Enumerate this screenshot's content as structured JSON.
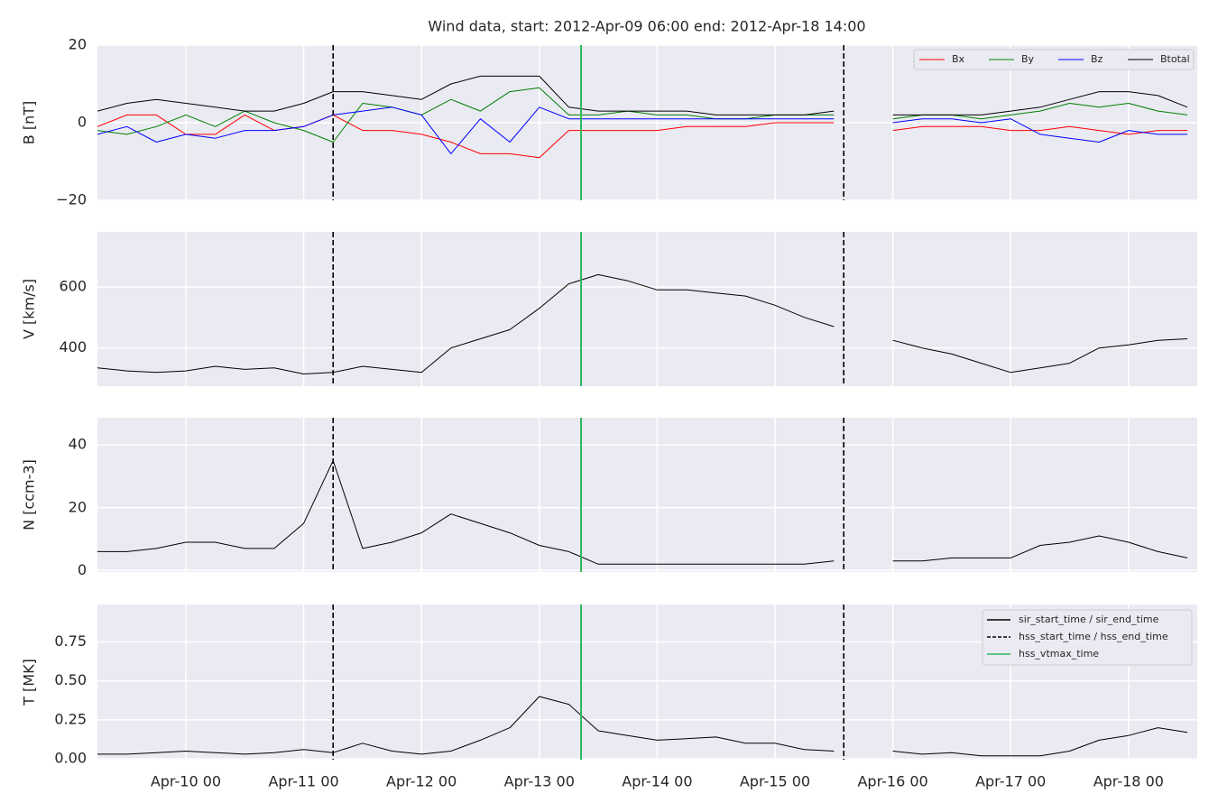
{
  "chart_data": {
    "type": "line",
    "title": "Wind data, start: 2012-Apr-09 06:00  end: 2012-Apr-18 14:00",
    "xlim": [
      "2012-04-09 06:00",
      "2012-04-18 14:00"
    ],
    "xticks": [
      {
        "value": "2012-04-10 00:00",
        "label": "Apr-10 00"
      },
      {
        "value": "2012-04-11 00:00",
        "label": "Apr-11 00"
      },
      {
        "value": "2012-04-12 00:00",
        "label": "Apr-12 00"
      },
      {
        "value": "2012-04-13 00:00",
        "label": "Apr-13 00"
      },
      {
        "value": "2012-04-14 00:00",
        "label": "Apr-14 00"
      },
      {
        "value": "2012-04-15 00:00",
        "label": "Apr-15 00"
      },
      {
        "value": "2012-04-16 00:00",
        "label": "Apr-16 00"
      },
      {
        "value": "2012-04-17 00:00",
        "label": "Apr-17 00"
      },
      {
        "value": "2012-04-18 00:00",
        "label": "Apr-18 00"
      }
    ],
    "grid": true,
    "x": [
      "2012-04-09 06:00",
      "2012-04-09 12:00",
      "2012-04-09 18:00",
      "2012-04-10 00:00",
      "2012-04-10 06:00",
      "2012-04-10 12:00",
      "2012-04-10 18:00",
      "2012-04-11 00:00",
      "2012-04-11 06:00",
      "2012-04-11 12:00",
      "2012-04-11 18:00",
      "2012-04-12 00:00",
      "2012-04-12 06:00",
      "2012-04-12 12:00",
      "2012-04-12 18:00",
      "2012-04-13 00:00",
      "2012-04-13 06:00",
      "2012-04-13 12:00",
      "2012-04-13 18:00",
      "2012-04-14 00:00",
      "2012-04-14 06:00",
      "2012-04-14 12:00",
      "2012-04-14 18:00",
      "2012-04-15 00:00",
      "2012-04-15 06:00",
      "2012-04-15 12:00",
      "2012-04-15 18:00",
      "2012-04-16 00:00",
      "2012-04-16 06:00",
      "2012-04-16 12:00",
      "2012-04-16 18:00",
      "2012-04-17 00:00",
      "2012-04-17 06:00",
      "2012-04-17 12:00",
      "2012-04-17 18:00",
      "2012-04-18 00:00",
      "2012-04-18 06:00",
      "2012-04-18 12:00"
    ],
    "events": {
      "legend": "upper right",
      "items": [
        {
          "name": "sir_start_time / sir_end_time",
          "color": "#000000",
          "style": "solid",
          "times": []
        },
        {
          "name": "hss_start_time / hss_end_time",
          "color": "#000000",
          "style": "dashed",
          "times": [
            "2012-04-11 06:00",
            "2012-04-15 14:00"
          ]
        },
        {
          "name": "hss_vtmax_time",
          "color": "#2eb85c",
          "style": "solid",
          "times": [
            "2012-04-13 08:30"
          ]
        }
      ]
    },
    "panels": [
      {
        "ylabel": "B [nT]",
        "ylim": [
          -20,
          20
        ],
        "yticks": [
          {
            "value": -20,
            "label": "−20"
          },
          0,
          20
        ],
        "legend": "upper right",
        "series": [
          {
            "name": "Bx",
            "color": "#ff0000",
            "values": [
              -1,
              2,
              2,
              -3,
              -3,
              2,
              -2,
              -1,
              2,
              -2,
              -2,
              -3,
              -5,
              -8,
              -8,
              -9,
              -2,
              -2,
              -2,
              -2,
              -1,
              -1,
              -1,
              0,
              0,
              0,
              null,
              -2,
              -1,
              -1,
              -1,
              -2,
              -2,
              -1,
              -2,
              -3,
              -2,
              -2
            ]
          },
          {
            "name": "By",
            "color": "#008000",
            "values": [
              -2,
              -3,
              -1,
              2,
              -1,
              3,
              0,
              -2,
              -5,
              5,
              4,
              2,
              6,
              3,
              8,
              9,
              2,
              2,
              3,
              2,
              2,
              1,
              1,
              2,
              2,
              2,
              null,
              1,
              2,
              2,
              1,
              2,
              3,
              5,
              4,
              5,
              3,
              2
            ]
          },
          {
            "name": "Bz",
            "color": "#0000ff",
            "values": [
              -3,
              -1,
              -5,
              -3,
              -4,
              -2,
              -2,
              -1,
              2,
              3,
              4,
              2,
              -8,
              1,
              -5,
              4,
              1,
              1,
              1,
              1,
              1,
              1,
              1,
              1,
              1,
              1,
              null,
              0,
              1,
              1,
              0,
              1,
              -3,
              -4,
              -5,
              -2,
              -3,
              -3
            ]
          },
          {
            "name": "Btotal",
            "color": "#000000",
            "values": [
              3,
              5,
              6,
              5,
              4,
              3,
              3,
              5,
              8,
              8,
              7,
              6,
              10,
              12,
              12,
              12,
              4,
              3,
              3,
              3,
              3,
              2,
              2,
              2,
              2,
              3,
              null,
              2,
              2,
              2,
              2,
              3,
              4,
              6,
              8,
              8,
              7,
              4
            ]
          }
        ]
      },
      {
        "ylabel": "V [km/s]",
        "ylim": [
          275,
          780
        ],
        "yticks": [
          400,
          600
        ],
        "series": [
          {
            "color": "#000000",
            "values": [
              335,
              325,
              320,
              325,
              340,
              330,
              335,
              315,
              320,
              340,
              330,
              320,
              400,
              430,
              460,
              530,
              610,
              640,
              620,
              590,
              590,
              580,
              570,
              540,
              500,
              470,
              null,
              425,
              400,
              380,
              350,
              320,
              335,
              350,
              400,
              410,
              425,
              430
            ]
          }
        ]
      },
      {
        "ylabel": "N [ccm-3]",
        "ylim": [
          -0.5,
          48.7
        ],
        "yticks": [
          0,
          20,
          40
        ],
        "series": [
          {
            "color": "#000000",
            "values": [
              6,
              6,
              7,
              9,
              9,
              7,
              7,
              15,
              35,
              7,
              9,
              12,
              18,
              15,
              12,
              8,
              6,
              2,
              2,
              2,
              2,
              2,
              2,
              2,
              2,
              3,
              null,
              3,
              3,
              4,
              4,
              4,
              8,
              9,
              11,
              9,
              6,
              4
            ]
          }
        ]
      },
      {
        "ylabel": "T [MK]",
        "ylim": [
          -0.005,
          0.99
        ],
        "yticks": [
          {
            "value": 0,
            "label": "0.00"
          },
          {
            "value": 0.25,
            "label": "0.25"
          },
          {
            "value": 0.5,
            "label": "0.50"
          },
          {
            "value": 0.75,
            "label": "0.75"
          }
        ],
        "series": [
          {
            "color": "#000000",
            "values": [
              0.03,
              0.03,
              0.04,
              0.05,
              0.04,
              0.03,
              0.04,
              0.06,
              0.04,
              0.1,
              0.05,
              0.03,
              0.05,
              0.12,
              0.2,
              0.4,
              0.35,
              0.18,
              0.15,
              0.12,
              0.13,
              0.14,
              0.1,
              0.1,
              0.06,
              0.05,
              null,
              0.05,
              0.03,
              0.04,
              0.02,
              0.02,
              0.02,
              0.05,
              0.12,
              0.15,
              0.2,
              0.17
            ]
          }
        ]
      }
    ]
  }
}
